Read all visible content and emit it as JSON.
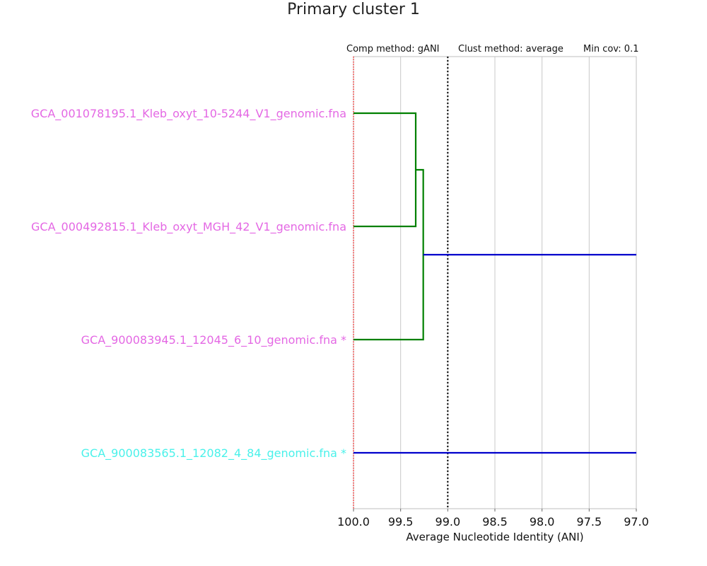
{
  "chart_data": {
    "type": "dendrogram",
    "title": "Primary cluster 1",
    "header": {
      "comp_method": "Comp method: gANI",
      "clust_method": "Clust method: average",
      "min_cov": "Min cov: 0.1"
    },
    "xlabel": "Average Nucleotide Identity (ANI)",
    "x_range": [
      100.0,
      97.0
    ],
    "x_ticks": [
      "100.0",
      "99.5",
      "99.0",
      "98.5",
      "98.0",
      "97.5",
      "97.0"
    ],
    "x_tick_values": [
      100.0,
      99.5,
      99.0,
      98.5,
      98.0,
      97.5,
      97.0
    ],
    "threshold_line": {
      "value": 99.0,
      "style": "dotted",
      "color": "#000000"
    },
    "reference_line": {
      "value": 100.0,
      "style": "dotted",
      "color": "#ff0000"
    },
    "grid": true,
    "leaves": [
      {
        "label": "GCA_001078195.1_Kleb_oxyt_10-5244_V1_genomic.fna",
        "color": "#e468e4"
      },
      {
        "label": "GCA_000492815.1_Kleb_oxyt_MGH_42_V1_genomic.fna",
        "color": "#e468e4"
      },
      {
        "label": "GCA_900083945.1_12045_6_10_genomic.fna *",
        "color": "#e468e4"
      },
      {
        "label": "GCA_900083565.1_12082_4_84_genomic.fna *",
        "color": "#4af1ea"
      }
    ],
    "merges": [
      {
        "members": [
          0,
          1
        ],
        "ani": 99.34,
        "color": "#008000"
      },
      {
        "members": [
          0,
          1,
          2
        ],
        "ani": 99.26,
        "color": "#008000"
      }
    ],
    "root_links": [
      {
        "from": "cluster_012",
        "ani_start": 99.26,
        "ani_end": 97.0,
        "color": "#0000cc"
      },
      {
        "from": "leaf_3",
        "ani_start": 100.0,
        "ani_end": 97.0,
        "color": "#0000cc"
      }
    ]
  }
}
